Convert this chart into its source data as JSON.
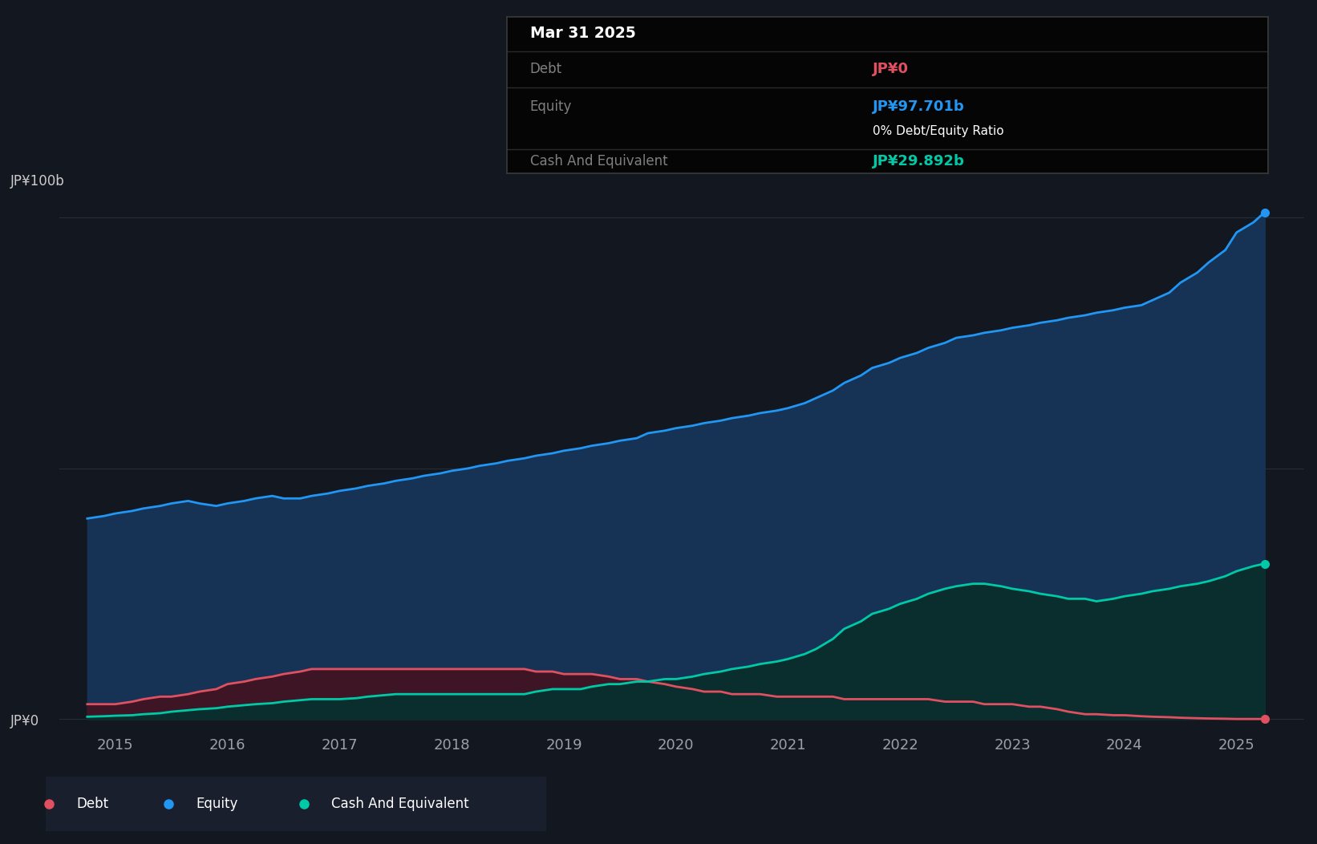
{
  "background_color": "#131720",
  "plot_bg_color": "#131720",
  "equity_color": "#2196f3",
  "equity_fill": "#163356",
  "debt_color": "#e05060",
  "debt_fill": "#3d1525",
  "cash_color": "#00c9a7",
  "cash_fill": "#0a2e2e",
  "grid_color": "#252c3a",
  "ylabel_top": "JP¥100b",
  "ylabel_bot": "JP¥0",
  "xlim_start": 2014.5,
  "xlim_end": 2025.6,
  "ylim_min": -3,
  "ylim_max": 108,
  "x_years": [
    2014.75,
    2014.9,
    2015.0,
    2015.15,
    2015.25,
    2015.4,
    2015.5,
    2015.65,
    2015.75,
    2015.9,
    2016.0,
    2016.15,
    2016.25,
    2016.4,
    2016.5,
    2016.65,
    2016.75,
    2016.9,
    2017.0,
    2017.15,
    2017.25,
    2017.4,
    2017.5,
    2017.65,
    2017.75,
    2017.9,
    2018.0,
    2018.15,
    2018.25,
    2018.4,
    2018.5,
    2018.65,
    2018.75,
    2018.9,
    2019.0,
    2019.15,
    2019.25,
    2019.4,
    2019.5,
    2019.65,
    2019.75,
    2019.9,
    2020.0,
    2020.15,
    2020.25,
    2020.4,
    2020.5,
    2020.65,
    2020.75,
    2020.9,
    2021.0,
    2021.15,
    2021.25,
    2021.4,
    2021.5,
    2021.65,
    2021.75,
    2021.9,
    2022.0,
    2022.15,
    2022.25,
    2022.4,
    2022.5,
    2022.65,
    2022.75,
    2022.9,
    2023.0,
    2023.15,
    2023.25,
    2023.4,
    2023.5,
    2023.65,
    2023.75,
    2023.9,
    2024.0,
    2024.15,
    2024.25,
    2024.4,
    2024.5,
    2024.65,
    2024.75,
    2024.9,
    2025.0,
    2025.15,
    2025.25
  ],
  "equity": [
    40,
    40.5,
    41,
    41.5,
    42,
    42.5,
    43,
    43.5,
    43,
    42.5,
    43,
    43.5,
    44,
    44.5,
    44,
    44,
    44.5,
    45,
    45.5,
    46,
    46.5,
    47,
    47.5,
    48,
    48.5,
    49,
    49.5,
    50,
    50.5,
    51,
    51.5,
    52,
    52.5,
    53,
    53.5,
    54,
    54.5,
    55,
    55.5,
    56,
    57,
    57.5,
    58,
    58.5,
    59,
    59.5,
    60,
    60.5,
    61,
    61.5,
    62,
    63,
    64,
    65.5,
    67,
    68.5,
    70,
    71,
    72,
    73,
    74,
    75,
    76,
    76.5,
    77,
    77.5,
    78,
    78.5,
    79,
    79.5,
    80,
    80.5,
    81,
    81.5,
    82,
    82.5,
    83.5,
    85,
    87,
    89,
    91,
    93.5,
    97,
    99,
    101
  ],
  "debt": [
    3,
    3,
    3,
    3.5,
    4,
    4.5,
    4.5,
    5,
    5.5,
    6,
    7,
    7.5,
    8,
    8.5,
    9,
    9.5,
    10,
    10,
    10,
    10,
    10,
    10,
    10,
    10,
    10,
    10,
    10,
    10,
    10,
    10,
    10,
    10,
    9.5,
    9.5,
    9,
    9,
    9,
    8.5,
    8,
    8,
    7.5,
    7,
    6.5,
    6,
    5.5,
    5.5,
    5,
    5,
    5,
    4.5,
    4.5,
    4.5,
    4.5,
    4.5,
    4,
    4,
    4,
    4,
    4,
    4,
    4,
    3.5,
    3.5,
    3.5,
    3,
    3,
    3,
    2.5,
    2.5,
    2,
    1.5,
    1,
    1,
    0.8,
    0.8,
    0.6,
    0.5,
    0.4,
    0.3,
    0.2,
    0.15,
    0.1,
    0.05,
    0.05,
    0.05
  ],
  "cash": [
    0.5,
    0.6,
    0.7,
    0.8,
    1,
    1.2,
    1.5,
    1.8,
    2,
    2.2,
    2.5,
    2.8,
    3,
    3.2,
    3.5,
    3.8,
    4,
    4,
    4,
    4.2,
    4.5,
    4.8,
    5,
    5,
    5,
    5,
    5,
    5,
    5,
    5,
    5,
    5,
    5.5,
    6,
    6,
    6,
    6.5,
    7,
    7,
    7.5,
    7.5,
    8,
    8,
    8.5,
    9,
    9.5,
    10,
    10.5,
    11,
    11.5,
    12,
    13,
    14,
    16,
    18,
    19.5,
    21,
    22,
    23,
    24,
    25,
    26,
    26.5,
    27,
    27,
    26.5,
    26,
    25.5,
    25,
    24.5,
    24,
    24,
    23.5,
    24,
    24.5,
    25,
    25.5,
    26,
    26.5,
    27,
    27.5,
    28.5,
    29.5,
    30.5,
    31
  ],
  "xtick_positions": [
    2015,
    2016,
    2017,
    2018,
    2019,
    2020,
    2021,
    2022,
    2023,
    2024,
    2025
  ],
  "xtick_labels": [
    "2015",
    "2016",
    "2017",
    "2018",
    "2019",
    "2020",
    "2021",
    "2022",
    "2023",
    "2024",
    "2025"
  ],
  "tooltip_date": "Mar 31 2025",
  "tooltip_debt_label": "Debt",
  "tooltip_debt_value": "JP¥0",
  "tooltip_equity_label": "Equity",
  "tooltip_equity_value": "JP¥97.701b",
  "tooltip_ratio": "0% Debt/Equity Ratio",
  "tooltip_cash_label": "Cash And Equivalent",
  "tooltip_cash_value": "JP¥29.892b",
  "legend_items": [
    "Debt",
    "Equity",
    "Cash And Equivalent"
  ]
}
